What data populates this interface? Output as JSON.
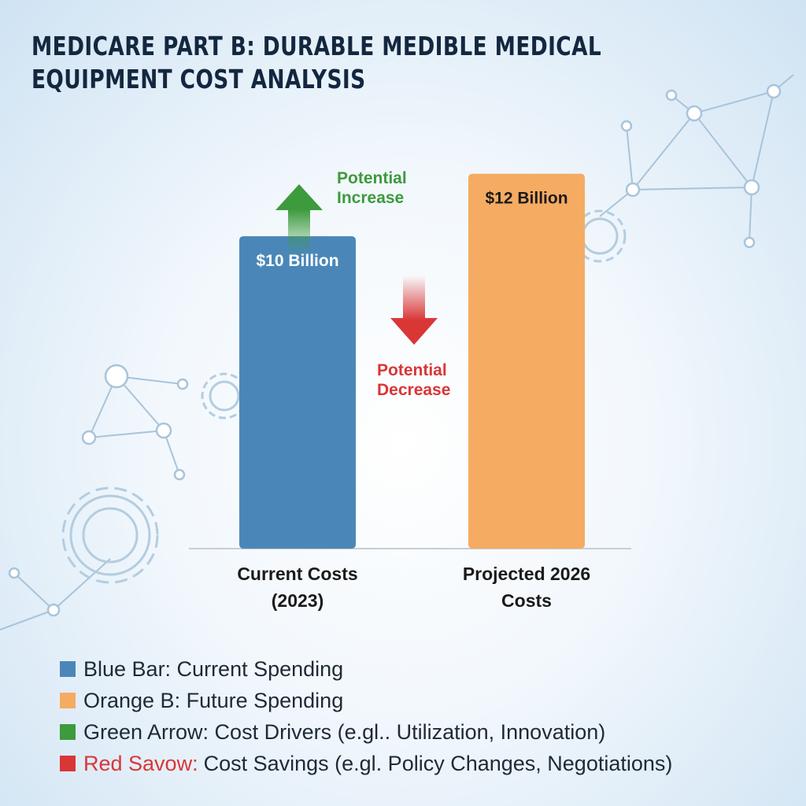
{
  "title": "MEDICARE PART B: DURABLE MEDIBLE MEDICAL EQUIPMENT COST ANALYSIS",
  "chart_data": {
    "type": "bar",
    "title": "MEDICARE PART B: DURABLE MEDIBLE MEDICAL EQUIPMENT COST ANALYSIS",
    "categories": [
      {
        "line1": "Current Costs",
        "line2": "(2023)"
      },
      {
        "line1": "Projected 2026",
        "line2": "Costs"
      }
    ],
    "values": [
      10,
      12
    ],
    "unit": "Billion USD",
    "value_labels": [
      "$10 Billion",
      "$12 Billion"
    ],
    "bar_colors": [
      "#4a87b8",
      "#f5ab62"
    ],
    "value_label_colors": [
      "#ffffff",
      "#1a1a1a"
    ],
    "ylim": [
      0,
      13
    ],
    "grid": false,
    "annotations": [
      {
        "line1": "Potential",
        "line2": "Increase",
        "direction": "up",
        "color": "#3d9a3d"
      },
      {
        "line1": "Potential",
        "line2": "Decrease",
        "direction": "down",
        "color": "#d93636"
      }
    ]
  },
  "legend": [
    {
      "color": "#4a87b8",
      "key": "",
      "text": "Blue Bar: Current Spending"
    },
    {
      "color": "#f5ab62",
      "key": "",
      "text": "Orange B: Future Spending"
    },
    {
      "color": "#3d9a3d",
      "key": "",
      "text": "Green Arrow: Cost Drivers (e.gl.. Utilization, Innovation)"
    },
    {
      "color": "#d93636",
      "key": "Red Savow:",
      "key_color": "#d93636",
      "text": "Cost Savings (e.gl. Policy Changes, Negotiations)"
    }
  ]
}
